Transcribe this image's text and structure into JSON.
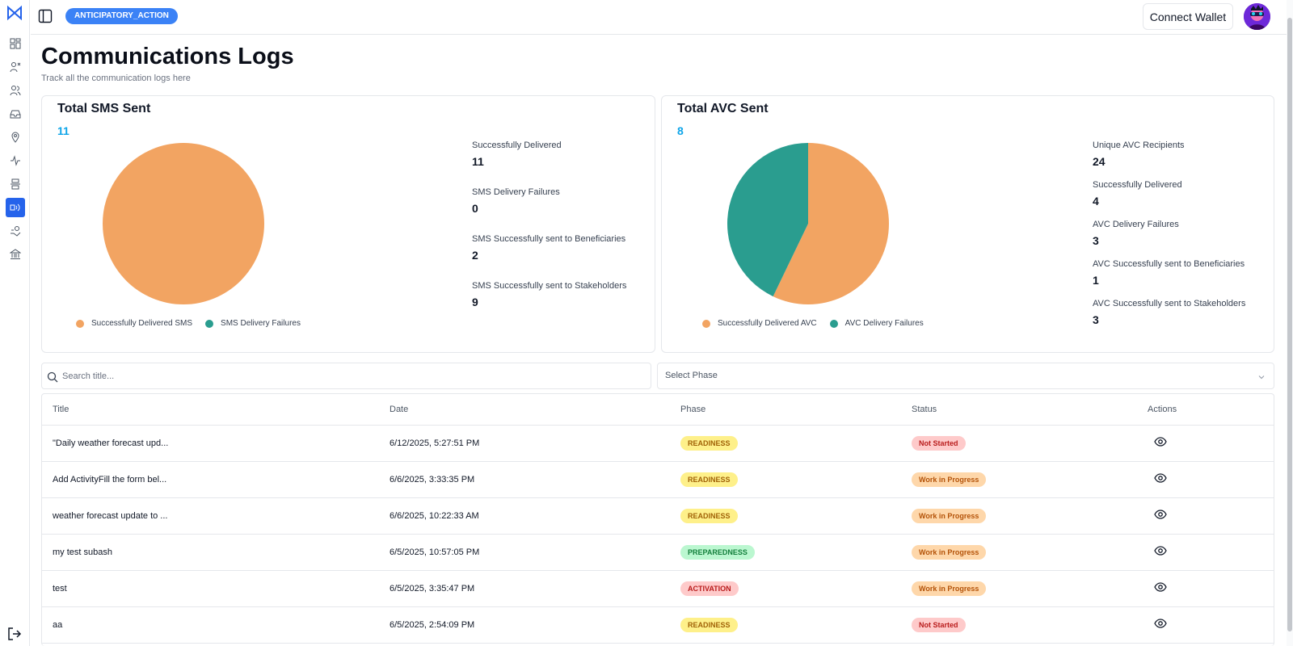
{
  "header": {
    "project_badge": "ANTICIPATORY_ACTION",
    "connect_wallet_label": "Connect Wallet"
  },
  "page": {
    "title": "Communications Logs",
    "subtitle": "Track all the communication logs here"
  },
  "sms_card": {
    "title": "Total SMS Sent",
    "total": "11",
    "stats": [
      {
        "label": "Successfully Delivered",
        "value": "11"
      },
      {
        "label": "SMS Delivery Failures",
        "value": "0"
      },
      {
        "label": "SMS Successfully sent to Beneficiaries",
        "value": "2"
      },
      {
        "label": "SMS Successfully sent to Stakeholders",
        "value": "9"
      }
    ],
    "legend": [
      "Successfully Delivered SMS",
      "SMS Delivery Failures"
    ]
  },
  "avc_card": {
    "title": "Total AVC Sent",
    "total": "8",
    "stats": [
      {
        "label": "Unique AVC Recipients",
        "value": "24"
      },
      {
        "label": "Successfully Delivered",
        "value": "4"
      },
      {
        "label": "AVC Delivery Failures",
        "value": "3"
      },
      {
        "label": "AVC Successfully sent to Beneficiaries",
        "value": "1"
      },
      {
        "label": "AVC Successfully sent to Stakeholders",
        "value": "3"
      }
    ],
    "legend": [
      "Successfully Delivered AVC",
      "AVC Delivery Failures"
    ]
  },
  "chart_data": [
    {
      "type": "pie",
      "categories": [
        "Successfully Delivered SMS",
        "SMS Delivery Failures"
      ],
      "values": [
        11,
        0
      ],
      "colors": [
        "#f2a462",
        "#2a9d8f"
      ],
      "title": "Total SMS Sent",
      "legend": "bottom"
    },
    {
      "type": "pie",
      "categories": [
        "Successfully Delivered AVC",
        "AVC Delivery Failures"
      ],
      "values": [
        4,
        3
      ],
      "colors": [
        "#f2a462",
        "#2a9d8f"
      ],
      "title": "Total AVC Sent",
      "legend": "bottom"
    }
  ],
  "filters": {
    "search_placeholder": "Search title...",
    "phase_select_value": "Select Phase"
  },
  "table": {
    "columns": [
      "Title",
      "Date",
      "Phase",
      "Status",
      "Actions"
    ],
    "rows": [
      {
        "title": "\"Daily weather forecast upd...",
        "date": "6/12/2025, 5:27:51 PM",
        "phase": "READINESS",
        "status": "Not Started"
      },
      {
        "title": "Add ActivityFill the form bel...",
        "date": "6/6/2025, 3:33:35 PM",
        "phase": "READINESS",
        "status": "Work in Progress"
      },
      {
        "title": "weather forecast update to ...",
        "date": "6/6/2025, 10:22:33 AM",
        "phase": "READINESS",
        "status": "Work in Progress"
      },
      {
        "title": "my test subash",
        "date": "6/5/2025, 10:57:05 PM",
        "phase": "PREPAREDNESS",
        "status": "Work in Progress"
      },
      {
        "title": "test",
        "date": "6/5/2025, 3:35:47 PM",
        "phase": "ACTIVATION",
        "status": "Work in Progress"
      },
      {
        "title": "aa",
        "date": "6/5/2025, 2:54:09 PM",
        "phase": "READINESS",
        "status": "Not Started"
      }
    ]
  },
  "phase_colors": {
    "READINESS": {
      "bg": "#fef08a",
      "fg": "#a16207"
    },
    "PREPAREDNESS": {
      "bg": "#bbf7d0",
      "fg": "#15803d"
    },
    "ACTIVATION": {
      "bg": "#fecaca",
      "fg": "#b91c1c"
    }
  },
  "status_colors": {
    "Not Started": {
      "bg": "#fecaca",
      "fg": "#b91c1c"
    },
    "Work in Progress": {
      "bg": "#fed7aa",
      "fg": "#b45309"
    }
  },
  "sidebar": {
    "items": [
      "dashboard-icon",
      "beneficiaries-icon",
      "stakeholders-icon",
      "inbox-icon",
      "location-icon",
      "activity-icon",
      "phases-icon",
      "communications-icon",
      "payout-icon",
      "bank-icon"
    ],
    "active_index": 7
  }
}
